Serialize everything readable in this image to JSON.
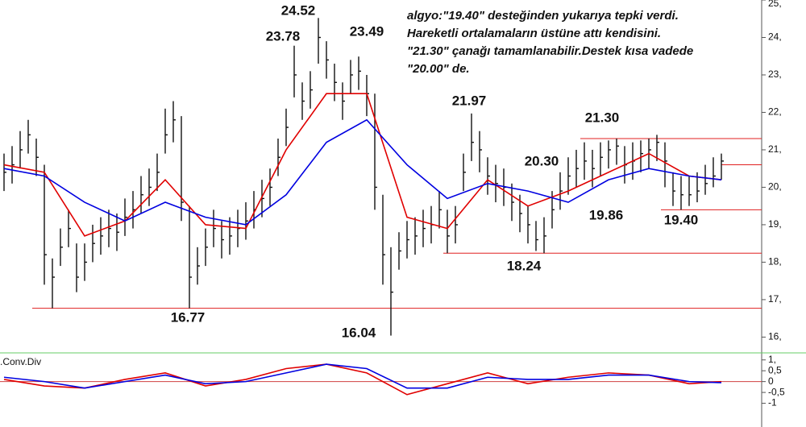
{
  "chart_data": [
    {
      "type": "ohlc",
      "note": [
        "algyo:\"19.40\" desteğinden yukarıya tepki verdi.",
        "Hareketli ortalamaların üstüne attı kendisini.",
        "\"21.30\" çanağı tamamlanabilir.Destek kısa vadede",
        "\"20.00\" de."
      ],
      "annotations": [
        "24.52",
        "23.78",
        "23.49",
        "21.97",
        "21.30",
        "20.30",
        "19.86",
        "19.40",
        "18.24",
        "16.77",
        "16.04"
      ],
      "high": [
        20.9,
        21.1,
        21.5,
        21.8,
        21.3,
        20.6,
        18.1,
        18.9,
        19.4,
        18.5,
        18.5,
        19.0,
        19.2,
        19.4,
        19.3,
        19.7,
        19.9,
        20.3,
        20.5,
        20.9,
        22.1,
        22.3,
        21.9,
        19.5,
        18.4,
        18.9,
        19.4,
        19.1,
        19.2,
        19.4,
        19.6,
        19.9,
        20.2,
        20.5,
        21.3,
        22.1,
        23.78,
        22.8,
        23.1,
        24.52,
        23.9,
        23.3,
        22.8,
        23.4,
        23.49,
        23.0,
        22.5,
        19.8,
        18.4,
        18.8,
        19.1,
        19.2,
        19.4,
        19.5,
        19.9,
        19.4,
        19.5,
        20.9,
        21.97,
        21.5,
        20.8,
        20.6,
        20.5,
        20.1,
        19.8,
        19.5,
        19.1,
        19.2,
        19.9,
        20.4,
        20.8,
        21.0,
        21.2,
        21.0,
        21.2,
        21.25,
        21.3,
        21.1,
        21.2,
        21.25,
        21.3,
        21.4,
        21.2,
        20.4,
        20.3,
        20.3,
        20.4,
        20.6,
        20.8,
        20.9
      ],
      "low": [
        19.9,
        20.1,
        20.5,
        20.9,
        20.3,
        17.4,
        16.77,
        17.9,
        18.4,
        17.2,
        17.5,
        18.0,
        18.2,
        18.4,
        18.3,
        18.7,
        18.9,
        19.3,
        19.5,
        19.9,
        20.9,
        21.2,
        19.1,
        16.77,
        17.4,
        17.9,
        18.4,
        18.1,
        18.2,
        18.4,
        18.6,
        18.9,
        19.2,
        19.5,
        20.3,
        21.1,
        22.4,
        21.8,
        22.1,
        23.3,
        22.9,
        22.3,
        21.8,
        22.5,
        22.6,
        21.9,
        19.4,
        17.4,
        16.04,
        17.8,
        18.1,
        18.2,
        18.4,
        18.5,
        18.9,
        18.24,
        18.5,
        19.9,
        20.7,
        20.4,
        19.8,
        19.6,
        19.5,
        19.1,
        18.8,
        18.5,
        18.3,
        18.24,
        18.9,
        19.4,
        19.8,
        20.0,
        20.2,
        20.0,
        20.3,
        20.5,
        20.6,
        20.1,
        20.2,
        20.4,
        20.5,
        20.7,
        20.0,
        19.5,
        19.4,
        19.5,
        19.6,
        19.8,
        20.0,
        20.2
      ],
      "close": [
        20.4,
        20.6,
        21.0,
        21.4,
        20.8,
        18.2,
        17.6,
        18.4,
        18.9,
        17.6,
        18.0,
        18.5,
        18.7,
        18.9,
        18.8,
        19.2,
        19.4,
        19.8,
        20.0,
        20.4,
        21.4,
        21.8,
        19.6,
        17.6,
        17.9,
        18.4,
        18.9,
        18.6,
        18.7,
        18.9,
        19.1,
        19.4,
        19.7,
        20.0,
        20.8,
        21.6,
        23.0,
        22.3,
        22.6,
        24.0,
        23.4,
        22.8,
        22.3,
        23.0,
        23.1,
        22.5,
        20.0,
        18.2,
        17.2,
        18.3,
        18.6,
        18.7,
        18.9,
        19.0,
        19.4,
        18.7,
        19.0,
        20.4,
        21.2,
        21.0,
        20.3,
        20.1,
        20.0,
        19.6,
        19.3,
        19.0,
        18.6,
        18.7,
        19.4,
        19.9,
        20.3,
        20.5,
        20.7,
        20.5,
        20.8,
        21.0,
        21.1,
        20.6,
        20.7,
        20.9,
        21.0,
        21.2,
        20.7,
        19.9,
        19.8,
        19.8,
        19.9,
        20.1,
        20.3,
        20.7
      ],
      "series": [
        {
          "color": "#e00000",
          "x": [
            0,
            5,
            10,
            15,
            20,
            25,
            30,
            35,
            40,
            45,
            50,
            55,
            60,
            65,
            70,
            75,
            80,
            85,
            89
          ],
          "values": [
            20.6,
            20.4,
            18.7,
            19.1,
            20.2,
            19.0,
            18.9,
            21.0,
            22.5,
            22.5,
            19.2,
            18.9,
            20.2,
            19.5,
            19.9,
            20.4,
            20.9,
            20.3,
            20.2
          ]
        },
        {
          "color": "#0000e0",
          "x": [
            0,
            5,
            10,
            15,
            20,
            25,
            30,
            35,
            40,
            45,
            50,
            55,
            60,
            65,
            70,
            75,
            80,
            85,
            89
          ],
          "values": [
            20.5,
            20.3,
            19.6,
            19.1,
            19.6,
            19.2,
            19.0,
            19.8,
            21.2,
            21.8,
            20.6,
            19.7,
            20.1,
            19.9,
            19.6,
            20.2,
            20.5,
            20.3,
            20.2
          ]
        }
      ],
      "hlines": [
        {
          "value": 16.77,
          "color": "#e02020"
        },
        {
          "value": 18.24,
          "color": "#e02020"
        },
        {
          "value": 19.4,
          "color": "#e02020"
        },
        {
          "value": 20.6,
          "color": "#e02020"
        },
        {
          "value": 21.3,
          "color": "#e02020"
        }
      ],
      "ylim": [
        15.6,
        25.0
      ],
      "yticks": [
        {
          "value": 16,
          "label": "16,"
        },
        {
          "value": 17,
          "label": "17,"
        },
        {
          "value": 18,
          "label": "18,"
        },
        {
          "value": 19,
          "label": "19,"
        },
        {
          "value": 20,
          "label": "20,"
        },
        {
          "value": 21,
          "label": "21,"
        },
        {
          "value": 22,
          "label": "22,"
        },
        {
          "value": 23,
          "label": "23,"
        },
        {
          "value": 24,
          "label": "24,"
        },
        {
          "value": 25,
          "label": "25,"
        }
      ]
    },
    {
      "type": "line",
      "title": ".Conv.Div",
      "series": [
        {
          "color": "#e00000",
          "x": [
            0,
            5,
            10,
            15,
            20,
            25,
            30,
            35,
            40,
            45,
            50,
            55,
            60,
            65,
            70,
            75,
            80,
            85,
            89
          ],
          "values": [
            0.1,
            -0.2,
            -0.3,
            0.1,
            0.4,
            -0.2,
            0.1,
            0.6,
            0.8,
            0.4,
            -0.6,
            -0.1,
            0.4,
            -0.1,
            0.2,
            0.4,
            0.3,
            -0.1,
            0.0
          ]
        },
        {
          "color": "#0000e0",
          "x": [
            0,
            5,
            10,
            15,
            20,
            25,
            30,
            35,
            40,
            45,
            50,
            55,
            60,
            65,
            70,
            75,
            80,
            85,
            89
          ],
          "values": [
            0.2,
            0.0,
            -0.3,
            0.0,
            0.3,
            -0.1,
            0.0,
            0.4,
            0.8,
            0.6,
            -0.3,
            -0.3,
            0.2,
            0.1,
            0.1,
            0.3,
            0.3,
            0.0,
            -0.05
          ]
        }
      ],
      "ylim": [
        -1.5,
        1.25
      ],
      "yticks": [
        {
          "value": 1,
          "label": "1,"
        },
        {
          "value": 0.5,
          "label": "0,5"
        },
        0,
        {
          "value": -0.5,
          "label": "-0,5"
        },
        -1
      ]
    }
  ]
}
